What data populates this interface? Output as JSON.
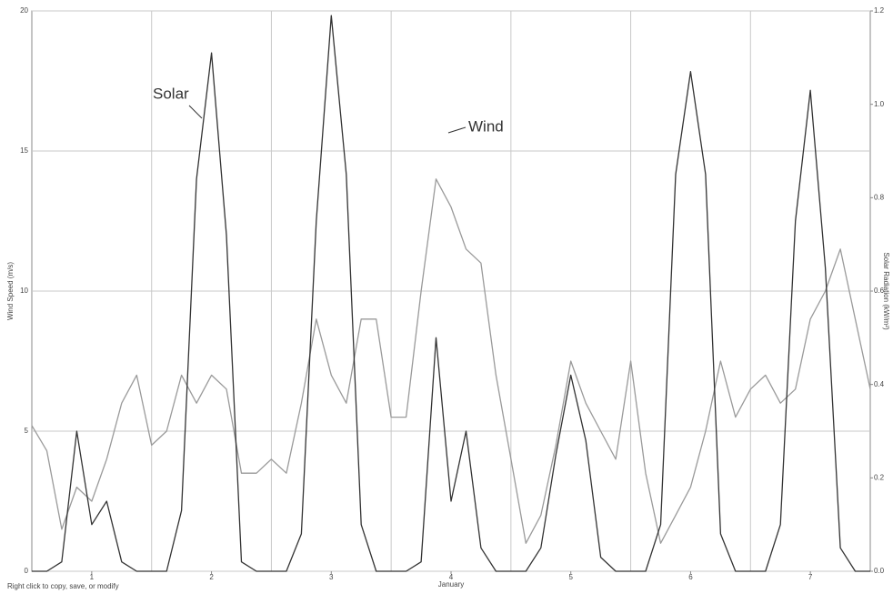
{
  "chart_data": {
    "type": "line",
    "x_label": "January",
    "y_label": "Wind Speed (m/s)",
    "y2_label": "Solar Radiation (kW/m²)",
    "footnote": "Right click to copy, save, or modify",
    "annotations": [
      {
        "text": "Solar"
      },
      {
        "text": "Wind"
      }
    ],
    "x": [
      0.5,
      0.625,
      0.75,
      0.875,
      1.0,
      1.125,
      1.25,
      1.375,
      1.5,
      1.625,
      1.75,
      1.875,
      2.0,
      2.125,
      2.25,
      2.375,
      2.5,
      2.625,
      2.75,
      2.875,
      3.0,
      3.125,
      3.25,
      3.375,
      3.5,
      3.625,
      3.75,
      3.875,
      4.0,
      4.125,
      4.25,
      4.375,
      4.5,
      4.625,
      4.75,
      4.875,
      5.0,
      5.125,
      5.25,
      5.375,
      5.5,
      5.625,
      5.75,
      5.875,
      6.0,
      6.125,
      6.25,
      6.375,
      6.5,
      6.625,
      6.75,
      6.875,
      7.0,
      7.125,
      7.25,
      7.375,
      7.5
    ],
    "xlim": [
      0.5,
      7.5
    ],
    "xticks": [
      1,
      2,
      3,
      4,
      5,
      6,
      7
    ],
    "xgrid": [
      1.5,
      2.5,
      3.5,
      4.5,
      5.5,
      6.5
    ],
    "ylim": [
      0,
      20
    ],
    "yticks": [
      0,
      5,
      10,
      15,
      20
    ],
    "y2lim": [
      0,
      1.2
    ],
    "y2ticks": [
      {
        "value": 0,
        "label": "0.0"
      },
      0.2,
      0.4,
      0.6,
      0.8,
      {
        "value": 1,
        "label": "1.0"
      },
      1.2
    ],
    "grid": true,
    "series": [
      {
        "name": "Solar",
        "color": "#333333",
        "axis": "y2",
        "values": [
          0,
          0,
          0.02,
          0.3,
          0.1,
          0.15,
          0.02,
          0,
          0,
          0,
          0.13,
          0.84,
          1.11,
          0.72,
          0.02,
          0,
          0,
          0,
          0.08,
          0.75,
          1.19,
          0.85,
          0.1,
          0,
          0,
          0,
          0.02,
          0.5,
          0.15,
          0.3,
          0.05,
          0,
          0,
          0,
          0.05,
          0.25,
          0.42,
          0.28,
          0.03,
          0,
          0,
          0,
          0.1,
          0.85,
          1.07,
          0.85,
          0.08,
          0,
          0,
          0,
          0.1,
          0.75,
          1.03,
          0.65,
          0.05,
          0,
          0
        ]
      },
      {
        "name": "Wind",
        "color": "#9a9a9a",
        "values": [
          5.2,
          4.3,
          1.5,
          3,
          2.5,
          4,
          6,
          7,
          4.5,
          5,
          7,
          6,
          7,
          6.5,
          3.5,
          3.5,
          4,
          3.5,
          6,
          9,
          7,
          6,
          9,
          9,
          5.5,
          5.5,
          10,
          14,
          13,
          11.5,
          11,
          7,
          4,
          1,
          2,
          4.5,
          7.5,
          6,
          5,
          4,
          7.5,
          3.5,
          1,
          2,
          3,
          5,
          7.5,
          5.5,
          6.5,
          7,
          6,
          6.5,
          9,
          10,
          11.5,
          9,
          6.5
        ]
      }
    ]
  }
}
